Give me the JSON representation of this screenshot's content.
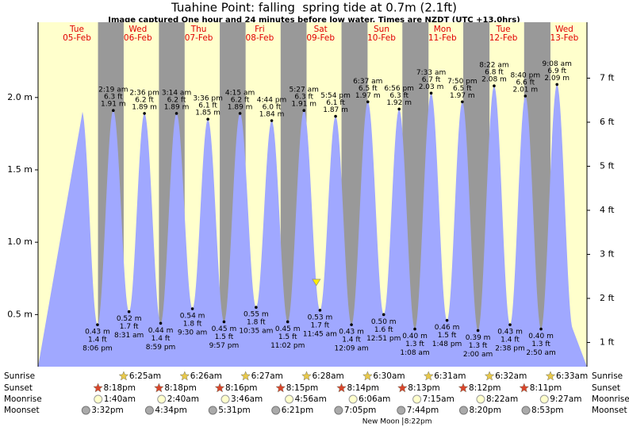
{
  "chart_data": {
    "type": "tide",
    "title": "Tuahine Point: falling  spring tide at 0.7m (2.1ft)",
    "subtitle": "Image captured One hour and 24 minutes before low water. Times are NZDT (UTC +13.0hrs)",
    "weekdays": [
      "Tue",
      "Wed",
      "Thu",
      "Fri",
      "Sat",
      "Sun",
      "Mon",
      "Tue",
      "Wed"
    ],
    "dates": [
      "05-Feb",
      "06-Feb",
      "07-Feb",
      "08-Feb",
      "09-Feb",
      "10-Feb",
      "11-Feb",
      "12-Feb",
      "13-Feb"
    ],
    "x": [
      "8:06 pm",
      "2:19 am",
      "8:31 am",
      "2:36 pm",
      "8:59 pm",
      "3:14 am",
      "9:30 am",
      "3:36 pm",
      "9:57 pm",
      "4:15 am",
      "10:35 am",
      "4:44 pm",
      "11:02 pm",
      "5:27 am",
      "11:45 am",
      "5:54 pm",
      "12:09 am",
      "6:37 am",
      "12:51 pm",
      "6:56 pm",
      "1:08 am",
      "7:33 am",
      "1:48 pm",
      "7:50 pm",
      "2:00 am",
      "8:22 am",
      "2:38 pm",
      "8:40 pm",
      "2:50 am",
      "9:08 am"
    ],
    "x_dates": [
      "05-Feb",
      "06-Feb",
      "06-Feb",
      "06-Feb",
      "06-Feb",
      "07-Feb",
      "07-Feb",
      "07-Feb",
      "07-Feb",
      "08-Feb",
      "08-Feb",
      "08-Feb",
      "08-Feb",
      "09-Feb",
      "09-Feb",
      "09-Feb",
      "10-Feb",
      "10-Feb",
      "10-Feb",
      "10-Feb",
      "11-Feb",
      "11-Feb",
      "11-Feb",
      "11-Feb",
      "12-Feb",
      "12-Feb",
      "12-Feb",
      "12-Feb",
      "13-Feb",
      "13-Feb"
    ],
    "heights_m": {
      "color": "#a0a8ff",
      "values": [
        0.43,
        1.91,
        0.52,
        1.89,
        0.44,
        1.89,
        0.54,
        1.85,
        0.45,
        1.89,
        0.55,
        1.84,
        0.45,
        1.91,
        0.53,
        1.87,
        0.43,
        1.97,
        0.5,
        1.92,
        0.4,
        2.03,
        0.46,
        1.97,
        0.39,
        2.08,
        0.43,
        2.01,
        0.4,
        2.09
      ],
      "value_labels": [
        "0.43 m",
        "1.91 m",
        "0.52 m",
        "1.89 m",
        "0.44 m",
        "1.89 m",
        "0.54 m",
        "1.85 m",
        "0.45 m",
        "1.89 m",
        "0.55 m",
        "1.84 m",
        "0.45 m",
        "1.91 m",
        "0.53 m",
        "1.87 m",
        "0.43 m",
        "1.97 m",
        "0.50 m",
        "1.92 m",
        "0.40 m",
        "2.03 m",
        "0.46 m",
        "1.97 m",
        "0.39 m",
        "2.08 m",
        "0.43 m",
        "2.01 m",
        "0.40 m",
        "2.09 m"
      ]
    },
    "heights_ft": {
      "values": [
        1.4,
        6.3,
        1.7,
        6.2,
        1.4,
        6.2,
        1.8,
        6.1,
        1.5,
        6.2,
        1.8,
        6.0,
        1.5,
        6.3,
        1.7,
        6.1,
        1.4,
        6.5,
        1.6,
        6.3,
        1.3,
        6.7,
        1.5,
        6.5,
        1.3,
        6.8,
        1.4,
        6.6,
        1.3,
        6.9
      ],
      "value_labels": [
        "1.4 ft",
        "6.3 ft",
        "1.7 ft",
        "6.2 ft",
        "1.4 ft",
        "6.2 ft",
        "1.8 ft",
        "6.1 ft",
        "1.5 ft",
        "6.2 ft",
        "1.8 ft",
        "6.0 ft",
        "1.5 ft",
        "6.3 ft",
        "1.7 ft",
        "6.1 ft",
        "1.4 ft",
        "6.5 ft",
        "1.6 ft",
        "6.3 ft",
        "1.3 ft",
        "6.7 ft",
        "1.5 ft",
        "6.5 ft",
        "1.3 ft",
        "6.8 ft",
        "1.4 ft",
        "6.6 ft",
        "1.3 ft",
        "6.9 ft"
      ]
    },
    "now": {
      "height_m": 0.7,
      "date": "09-Feb"
    },
    "ylim": [
      0.14,
      2.52
    ],
    "yticks": [
      {
        "value": 0.5,
        "label": "0.5 m"
      },
      {
        "value": 1.0,
        "label": "1.0 m"
      },
      {
        "value": 1.5,
        "label": "1.5 m"
      },
      {
        "value": 2.0,
        "label": "2.0 m"
      }
    ],
    "y2lim": [
      0.45,
      8.27
    ],
    "y2ticks": [
      {
        "value": 1,
        "label": "1 ft"
      },
      {
        "value": 2,
        "label": "2 ft"
      },
      {
        "value": 3,
        "label": "3 ft"
      },
      {
        "value": 4,
        "label": "4 ft"
      },
      {
        "value": 5,
        "label": "5 ft"
      },
      {
        "value": 6,
        "label": "6 ft"
      },
      {
        "value": 7,
        "label": "7 ft"
      }
    ],
    "rows": [
      "Sunrise",
      "Sunset",
      "Moonrise",
      "Moonset"
    ],
    "sunrise": {
      "dates": [
        "06-Feb",
        "07-Feb",
        "08-Feb",
        "09-Feb",
        "10-Feb",
        "11-Feb",
        "12-Feb",
        "13-Feb"
      ],
      "times": [
        "6:25am",
        "6:26am",
        "6:27am",
        "6:28am",
        "6:30am",
        "6:31am",
        "6:32am",
        "6:33am"
      ]
    },
    "sunset": {
      "dates": [
        "05-Feb",
        "06-Feb",
        "07-Feb",
        "08-Feb",
        "09-Feb",
        "10-Feb",
        "11-Feb",
        "12-Feb"
      ],
      "times": [
        "8:18pm",
        "8:18pm",
        "8:16pm",
        "8:15pm",
        "8:14pm",
        "8:13pm",
        "8:12pm",
        "8:11pm"
      ]
    },
    "moonrise": {
      "dates": [
        "06-Feb",
        "07-Feb",
        "08-Feb",
        "09-Feb",
        "10-Feb",
        "11-Feb",
        "12-Feb",
        "13-Feb"
      ],
      "times": [
        "1:40am",
        "2:40am",
        "3:46am",
        "4:56am",
        "6:06am",
        "7:15am",
        "8:22am",
        "9:27am"
      ]
    },
    "moonset": {
      "dates": [
        "05-Feb",
        "06-Feb",
        "07-Feb",
        "08-Feb",
        "09-Feb",
        "10-Feb",
        "11-Feb",
        "12-Feb"
      ],
      "times": [
        "3:32pm",
        "4:34pm",
        "5:31pm",
        "6:21pm",
        "7:05pm",
        "7:44pm",
        "8:20pm",
        "8:53pm"
      ]
    },
    "moon_phase": {
      "name": "New Moon",
      "date": "10-Feb",
      "time": "8:22pm"
    }
  }
}
